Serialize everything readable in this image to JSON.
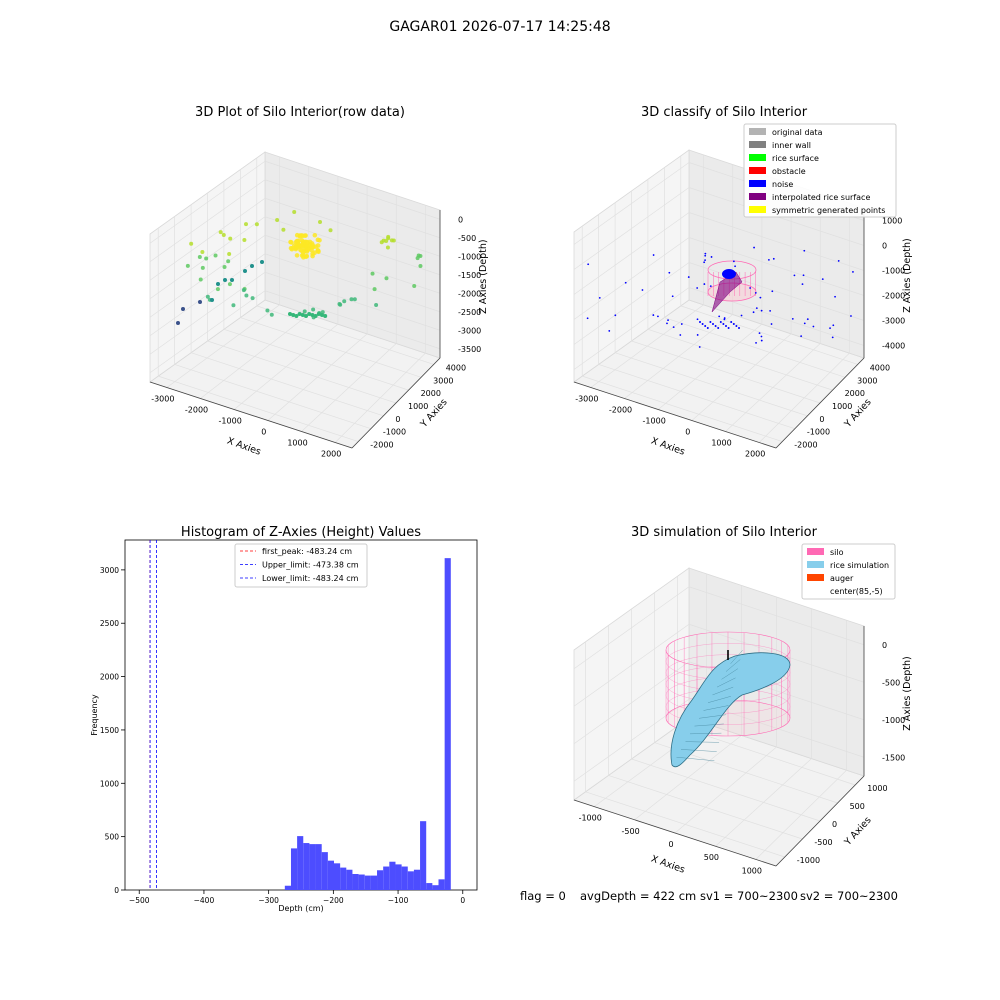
{
  "suptitle": "GAGAR01 2026-07-17 14:25:48",
  "status_line": {
    "flag": "flag = 0",
    "avg_depth": "avgDepth = 422 cm",
    "sv1": "sv1 = 700~2300",
    "sv2": "sv2 = 700~2300"
  },
  "chart_data": [
    {
      "type": "scatter",
      "projection": "3d",
      "title": "3D Plot of Silo Interior(row data)",
      "xlabel": "X Axies",
      "ylabel": "Y Axies",
      "zlabel": "Z Axies (Depth)",
      "x_ticks": [
        "-3000",
        "-2000",
        "-1000",
        "0",
        "1000",
        "2000"
      ],
      "y_ticks": [
        "-2000",
        "-1000",
        "0",
        "1000",
        "2000",
        "3000",
        "4000"
      ],
      "z_ticks": [
        "0",
        "-500",
        "-1000",
        "-1500",
        "-2000",
        "-2500",
        "-3000",
        "-3500"
      ],
      "colormap": [
        "#3b528b",
        "#21918c",
        "#5ec962",
        "#fde725"
      ],
      "grid": true
    },
    {
      "type": "scatter",
      "projection": "3d",
      "title": "3D classify of Silo Interior",
      "xlabel": "X Axies",
      "ylabel": "Y Axies",
      "zlabel": "Z Axies (Depth)",
      "x_ticks": [
        "-3000",
        "-2000",
        "-1000",
        "0",
        "1000",
        "2000"
      ],
      "y_ticks": [
        "-2000",
        "-1000",
        "0",
        "1000",
        "2000",
        "3000",
        "4000"
      ],
      "z_ticks": [
        "1000",
        "0",
        "-1000",
        "-2000",
        "-3000",
        "-4000"
      ],
      "legend": [
        {
          "label": "original data",
          "color": "#b3b3b3"
        },
        {
          "label": "inner wall",
          "color": "#808080"
        },
        {
          "label": "rice surface",
          "color": "#00ff00"
        },
        {
          "label": "obstacle",
          "color": "#ff0000"
        },
        {
          "label": "noise",
          "color": "#0000ff"
        },
        {
          "label": "interpolated rice surface",
          "color": "#800080"
        },
        {
          "label": "symmetric generated points",
          "color": "#ffff00"
        }
      ],
      "legend_position": "upper right",
      "grid": true
    },
    {
      "type": "bar",
      "title": "Histogram of Z-Axies (Height) Values",
      "xlabel": "Depth (cm)",
      "ylabel": "Frequency",
      "xlim": [
        -522,
        22
      ],
      "ylim": [
        0,
        3280
      ],
      "x_ticks": [
        -500,
        -400,
        -300,
        -200,
        -100,
        0
      ],
      "y_ticks": [
        0,
        500,
        1000,
        1500,
        2000,
        2500,
        3000
      ],
      "bin_width": 9.5,
      "bins": [
        [
          -275,
          40
        ],
        [
          -265.5,
          390
        ],
        [
          -256,
          505
        ],
        [
          -246.5,
          440
        ],
        [
          -237,
          430
        ],
        [
          -227.5,
          430
        ],
        [
          -218,
          355
        ],
        [
          -208.5,
          275
        ],
        [
          -199,
          250
        ],
        [
          -189.5,
          210
        ],
        [
          -180,
          190
        ],
        [
          -170.5,
          150
        ],
        [
          -161,
          145
        ],
        [
          -151.5,
          135
        ],
        [
          -142,
          135
        ],
        [
          -132.5,
          185
        ],
        [
          -123,
          220
        ],
        [
          -113.5,
          265
        ],
        [
          -104,
          240
        ],
        [
          -94.5,
          220
        ],
        [
          -85,
          175
        ],
        [
          -75.5,
          190
        ],
        [
          -66,
          645
        ],
        [
          -56.5,
          65
        ],
        [
          -47,
          45
        ],
        [
          -37.5,
          100
        ],
        [
          -28,
          3110
        ]
      ],
      "bar_color": "#4d4dff",
      "vlines": [
        {
          "label": "first_peak: -483.24 cm",
          "x": -483.24,
          "color": "#ff0000"
        },
        {
          "label": "Upper_limit: -473.38 cm",
          "x": -473.38,
          "color": "#0000ff"
        },
        {
          "label": "Lower_limit: -483.24 cm",
          "x": -483.24,
          "color": "#0000ff"
        }
      ],
      "legend_position": "upper center"
    },
    {
      "type": "surface",
      "projection": "3d",
      "title": "3D simulation of Silo Interior",
      "xlabel": "X Axies",
      "ylabel": "Y Axies",
      "zlabel": "Z Axies (Depth)",
      "x_ticks": [
        "-1000",
        "-500",
        "0",
        "500",
        "1000"
      ],
      "y_ticks": [
        "-1000",
        "-500",
        "0",
        "500",
        "1000"
      ],
      "z_ticks": [
        "0",
        "-500",
        "-1000",
        "-1500"
      ],
      "legend": [
        {
          "label": "silo",
          "color": "#ff69b4"
        },
        {
          "label": "rice simulation",
          "color": "#87ceeb"
        },
        {
          "label": "auger",
          "color": "#ff4500"
        },
        {
          "label": "center(85,-5)",
          "color": "#ffffff"
        }
      ],
      "legend_position": "upper right",
      "grid": true
    }
  ]
}
